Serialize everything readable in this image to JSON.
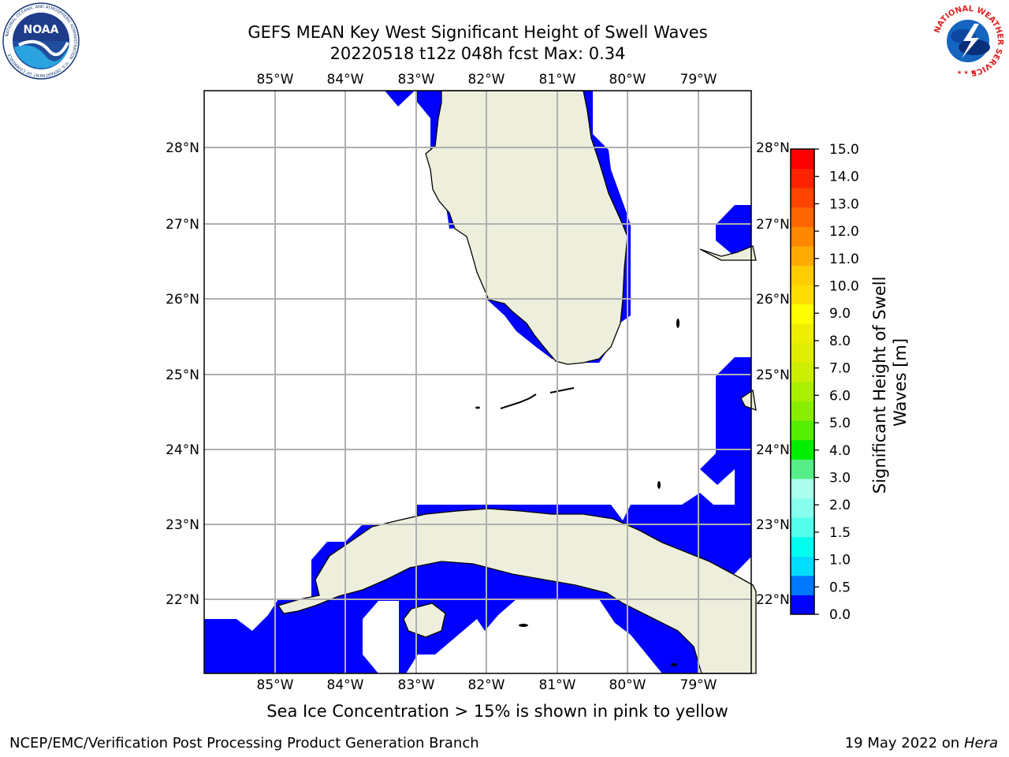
{
  "header": {
    "title_line1": "GEFS MEAN Key West Significant Height of Swell Waves",
    "title_line2": "20220518 t12z 048h fcst   Max: 0.34"
  },
  "map": {
    "region": "Key West",
    "lon_labels": [
      "85°W",
      "84°W",
      "83°W",
      "82°W",
      "81°W",
      "80°W",
      "79°W"
    ],
    "lat_labels": [
      "28°N",
      "27°N",
      "26°N",
      "25°N",
      "24°N",
      "23°N",
      "22°N"
    ],
    "ocean_color": "#0000ff",
    "land_color": "#eeeedd",
    "nodata_color": "#ffffff",
    "grid": true
  },
  "colorbar": {
    "label_line1": "Significant Height of Swell",
    "label_line2": "Waves [m]",
    "ticks": [
      "15.0",
      "14.0",
      "13.0",
      "12.0",
      "11.0",
      "10.0",
      "9.0",
      "8.0",
      "7.0",
      "6.0",
      "5.0",
      "4.0",
      "3.0",
      "2.0",
      "1.5",
      "1.0",
      "0.5",
      "0.0"
    ],
    "colors": [
      "#0000ff",
      "#0077ff",
      "#00ddff",
      "#00ffee",
      "#55ffee",
      "#88ffee",
      "#aaffee",
      "#55ee88",
      "#00ee00",
      "#55ee00",
      "#88ee00",
      "#aaee00",
      "#ccee00",
      "#ddee00",
      "#eeee00",
      "#ffff00",
      "#ffdd00",
      "#ffcc00",
      "#ffaa00",
      "#ff8800",
      "#ff6600",
      "#ff4400",
      "#ff2200",
      "#ff0000"
    ]
  },
  "footer": {
    "note": "Sea Ice Concentration > 15% is shown in pink to yellow",
    "credit": "NCEP/EMC/Verification Post Processing Product Generation Branch",
    "date": "19 May 2022 on",
    "host": "Hera"
  },
  "logos": {
    "noaa_text": "NOAA",
    "noaa_ring_text": "NATIONAL OCEANIC AND ATMOSPHERIC ADMINISTRATION · U.S. DEPARTMENT OF COMMERCE",
    "nws_ring_text": "NATIONAL WEATHER SERVICE",
    "noaa_icon": "noaa-logo",
    "nws_icon": "nws-logo"
  }
}
